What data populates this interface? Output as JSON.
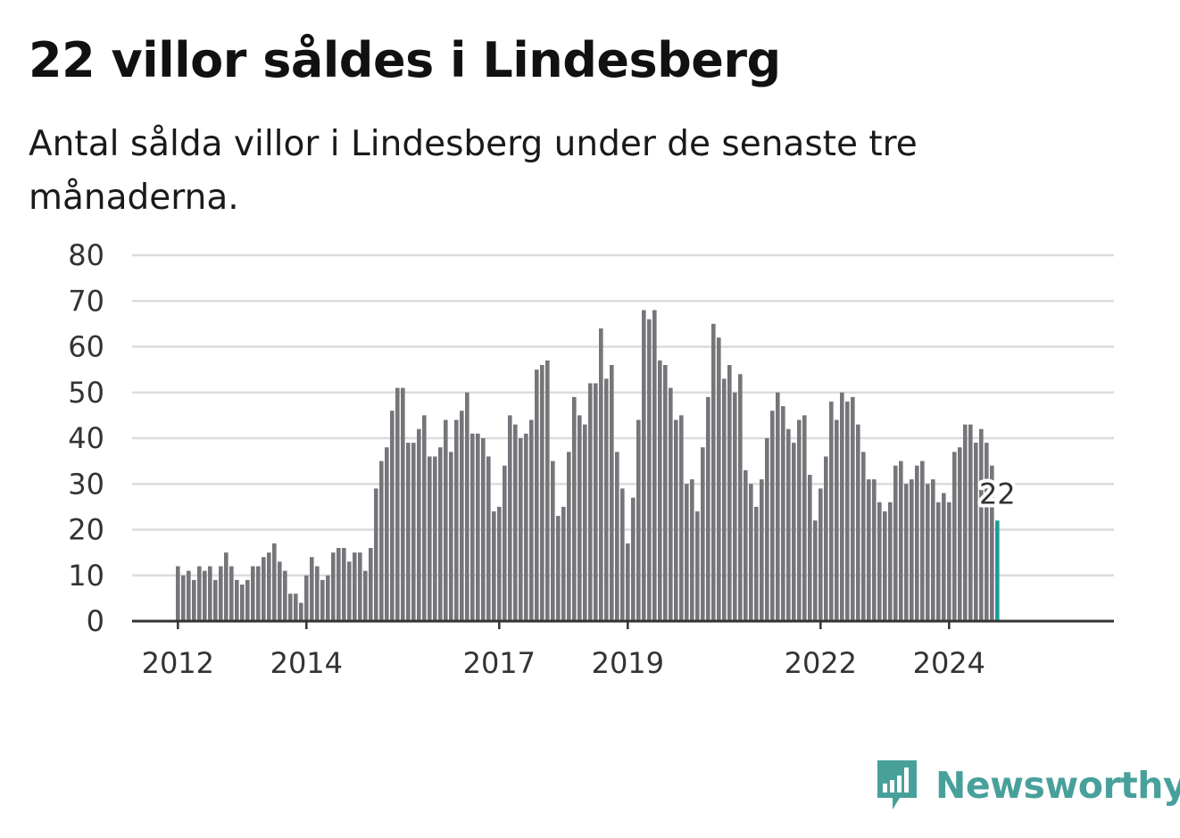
{
  "title": "22 villor såldes i Lindesberg",
  "subtitle": "Antal sålda villor i Lindesberg under de senaste tre månaderna.",
  "brand": {
    "name": "Newsworthy",
    "color": "#48a09b"
  },
  "colors": {
    "bar": "#75757a",
    "highlight": "#1a9e96",
    "grid": "#dcdcdc",
    "axis": "#333333"
  },
  "chart_data": {
    "type": "bar",
    "title": "22 villor såldes i Lindesberg",
    "subtitle": "Antal sålda villor i Lindesberg under de senaste tre månaderna.",
    "xlabel": "",
    "ylabel": "",
    "ylim": [
      0,
      80
    ],
    "yticks": [
      0,
      10,
      20,
      30,
      40,
      50,
      60,
      70,
      80
    ],
    "x_tick_labels": [
      "2012",
      "2014",
      "2017",
      "2019",
      "2022",
      "2024"
    ],
    "grid": true,
    "first_period": "2012-01",
    "last_period": "2024-11",
    "highlight_label": "22",
    "values": [
      12,
      10,
      11,
      9,
      12,
      11,
      12,
      9,
      12,
      15,
      12,
      9,
      8,
      9,
      12,
      12,
      14,
      15,
      17,
      13,
      11,
      6,
      6,
      4,
      10,
      14,
      12,
      9,
      10,
      15,
      16,
      16,
      13,
      15,
      15,
      11,
      16,
      29,
      35,
      38,
      46,
      51,
      51,
      39,
      39,
      42,
      45,
      36,
      36,
      38,
      44,
      37,
      44,
      46,
      50,
      41,
      41,
      40,
      36,
      24,
      25,
      34,
      45,
      43,
      40,
      41,
      44,
      55,
      56,
      57,
      35,
      23,
      25,
      37,
      49,
      45,
      43,
      52,
      52,
      64,
      53,
      56,
      37,
      29,
      17,
      27,
      44,
      68,
      66,
      68,
      57,
      56,
      51,
      44,
      45,
      30,
      31,
      24,
      38,
      49,
      65,
      62,
      53,
      56,
      50,
      54,
      33,
      30,
      25,
      31,
      40,
      46,
      50,
      47,
      42,
      39,
      44,
      45,
      32,
      22,
      29,
      36,
      48,
      44,
      50,
      48,
      49,
      43,
      37,
      31,
      31,
      26,
      24,
      26,
      34,
      35,
      30,
      31,
      34,
      35,
      30,
      31,
      26,
      28,
      26,
      37,
      38,
      43,
      43,
      39,
      42,
      39,
      34,
      22
    ]
  }
}
